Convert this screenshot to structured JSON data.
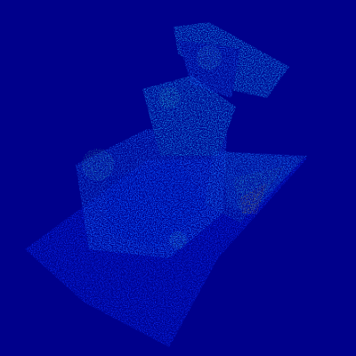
{
  "colors": {
    "background": "#00008b",
    "low_density": "#0a2dff",
    "mid_density": "#14a0ff",
    "high_density": "#3cf0c8",
    "peak_density": "#e6f020"
  },
  "scene": {
    "subject": "point-cloud-density-render",
    "colormap": "jet"
  }
}
